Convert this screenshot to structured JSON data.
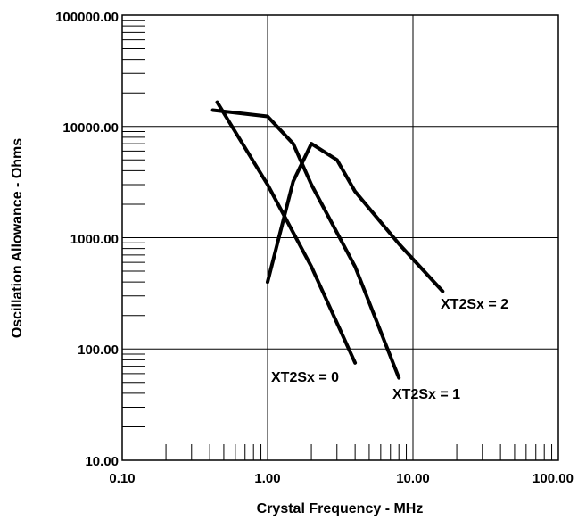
{
  "chart_data": {
    "type": "line",
    "title": "",
    "xlabel": "Crystal Frequency - MHz",
    "ylabel": "Oscillation Allowance - Ohms",
    "x_scale": "log",
    "y_scale": "log",
    "xlim": [
      0.1,
      100
    ],
    "ylim": [
      10,
      100000
    ],
    "x_ticks": [
      "0.10",
      "1.00",
      "10.00",
      "100.00"
    ],
    "y_ticks": [
      "10.00",
      "100.00",
      "1000.00",
      "10000.00",
      "100000.00"
    ],
    "grid": true,
    "series": [
      {
        "name": "XT2Sx = 0",
        "x": [
          0.45,
          1.0,
          2.0,
          4.0
        ],
        "y": [
          16500,
          3000,
          550,
          75
        ]
      },
      {
        "name": "XT2Sx = 1",
        "x": [
          0.42,
          1.0,
          1.5,
          2.0,
          4.0,
          8.0
        ],
        "y": [
          14000,
          12300,
          7000,
          3000,
          550,
          55
        ]
      },
      {
        "name": "XT2Sx = 2",
        "x": [
          1.0,
          1.5,
          2.0,
          3.0,
          4.0,
          8.0,
          16.0
        ],
        "y": [
          400,
          3200,
          7000,
          5000,
          2600,
          880,
          330
        ]
      }
    ]
  }
}
